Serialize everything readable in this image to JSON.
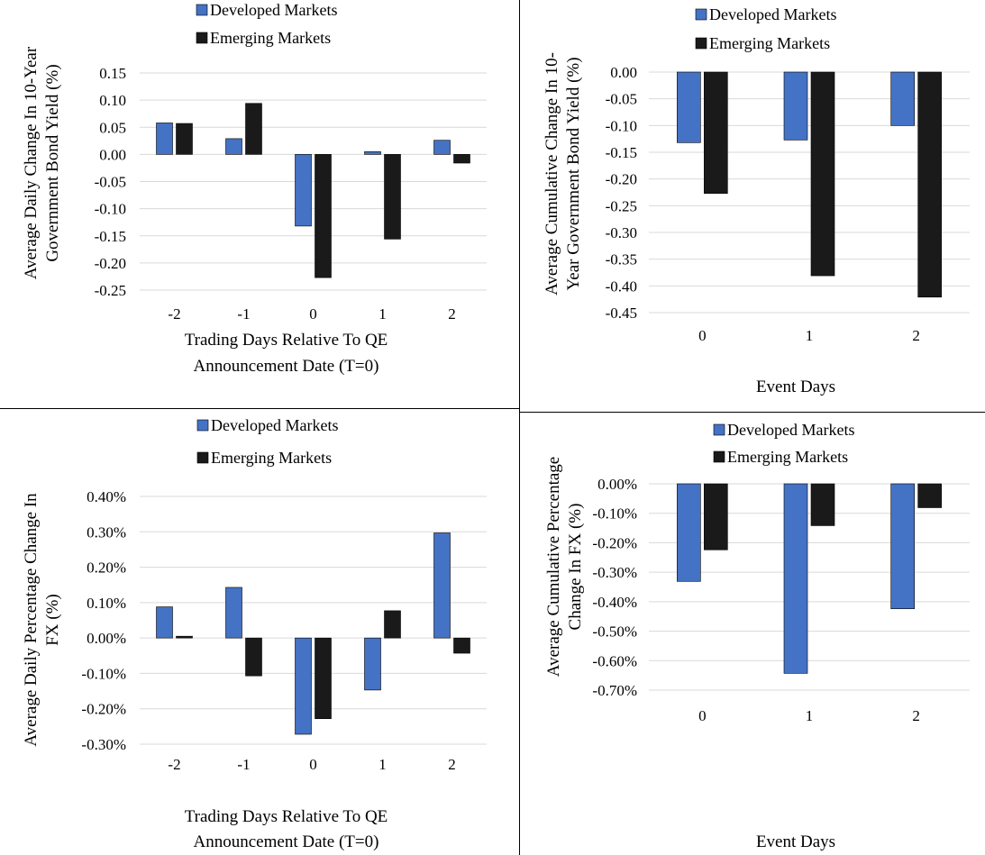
{
  "legend": {
    "developed": "Developed Markets",
    "emerging": "Emerging Markets"
  },
  "colors": {
    "developed": "#4472c4",
    "emerging": "#1a1a1a",
    "grid": "#d9d9d9"
  },
  "chart_data": [
    {
      "type": "bar",
      "title": "",
      "xlabel": "Trading Days Relative To QE Announcement Date (T=0)",
      "xlabel_lines": [
        "Trading Days Relative To QE",
        "Announcement Date (T=0)"
      ],
      "ylabel_lines": [
        "Average Daily Change In 10-Year",
        "Government Bond Yield (%)"
      ],
      "categories": [
        "-2",
        "-1",
        "0",
        "1",
        "2"
      ],
      "ylim": [
        -0.25,
        0.15
      ],
      "ticks": [
        0.15,
        0.1,
        0.05,
        0.0,
        -0.05,
        -0.1,
        -0.15,
        -0.2,
        -0.25
      ],
      "tick_labels": [
        "0.15",
        "0.10",
        "0.05",
        "0.00",
        "-0.05",
        "-0.10",
        "-0.15",
        "-0.20",
        "-0.25"
      ],
      "grid": true,
      "legend_position": "top",
      "series": [
        {
          "name": "Developed Markets",
          "values": [
            0.058,
            0.029,
            -0.132,
            0.005,
            0.026
          ]
        },
        {
          "name": "Emerging Markets",
          "values": [
            0.057,
            0.094,
            -0.227,
            -0.156,
            -0.016
          ]
        }
      ]
    },
    {
      "type": "bar",
      "title": "",
      "xlabel": "Event Days",
      "xlabel_lines": [
        "Event Days"
      ],
      "ylabel_lines": [
        "Average Cumulative Change In 10-",
        "Year Government Bond Yield (%)"
      ],
      "categories": [
        "0",
        "1",
        "2"
      ],
      "ylim": [
        -0.45,
        0.0
      ],
      "ticks": [
        0.0,
        -0.05,
        -0.1,
        -0.15,
        -0.2,
        -0.25,
        -0.3,
        -0.35,
        -0.4,
        -0.45
      ],
      "tick_labels": [
        "0.00",
        "-0.05",
        "-0.10",
        "-0.15",
        "-0.20",
        "-0.25",
        "-0.30",
        "-0.35",
        "-0.40",
        "-0.45"
      ],
      "grid": true,
      "legend_position": "top",
      "series": [
        {
          "name": "Developed Markets",
          "values": [
            -0.132,
            -0.127,
            -0.1
          ]
        },
        {
          "name": "Emerging Markets",
          "values": [
            -0.227,
            -0.381,
            -0.421
          ]
        }
      ]
    },
    {
      "type": "bar",
      "title": "",
      "xlabel": "Trading Days Relative To QE Announcement Date (T=0)",
      "xlabel_lines": [
        "Trading Days Relative To QE",
        "Announcement Date (T=0)"
      ],
      "ylabel_lines": [
        "Average Daily Percentage Change In",
        "FX (%)"
      ],
      "categories": [
        "-2",
        "-1",
        "0",
        "1",
        "2"
      ],
      "ylim": [
        -0.3,
        0.4
      ],
      "ticks": [
        0.4,
        0.3,
        0.2,
        0.1,
        0.0,
        -0.1,
        -0.2,
        -0.3
      ],
      "tick_labels": [
        "0.40%",
        "0.30%",
        "0.20%",
        "0.10%",
        "0.00%",
        "-0.10%",
        "-0.20%",
        "-0.30%"
      ],
      "grid": true,
      "legend_position": "top",
      "series": [
        {
          "name": "Developed Markets",
          "values": [
            0.088,
            0.143,
            -0.272,
            -0.147,
            0.297
          ]
        },
        {
          "name": "Emerging Markets",
          "values": [
            0.005,
            -0.107,
            -0.228,
            0.077,
            -0.043
          ]
        }
      ]
    },
    {
      "type": "bar",
      "title": "",
      "xlabel": "Event Days",
      "xlabel_lines": [
        "Event Days"
      ],
      "ylabel_lines": [
        "Average Cumulative Percentage",
        "Change In FX (%)"
      ],
      "categories": [
        "0",
        "1",
        "2"
      ],
      "ylim": [
        -0.7,
        0.0
      ],
      "ticks": [
        0.0,
        -0.1,
        -0.2,
        -0.3,
        -0.4,
        -0.5,
        -0.6,
        -0.7
      ],
      "tick_labels": [
        "0.00%",
        "-0.10%",
        "-0.20%",
        "-0.30%",
        "-0.40%",
        "-0.50%",
        "-0.60%",
        "-0.70%"
      ],
      "grid": true,
      "legend_position": "top",
      "series": [
        {
          "name": "Developed Markets",
          "values": [
            -0.331,
            -0.643,
            -0.424
          ]
        },
        {
          "name": "Emerging Markets",
          "values": [
            -0.224,
            -0.142,
            -0.081
          ]
        }
      ]
    }
  ]
}
